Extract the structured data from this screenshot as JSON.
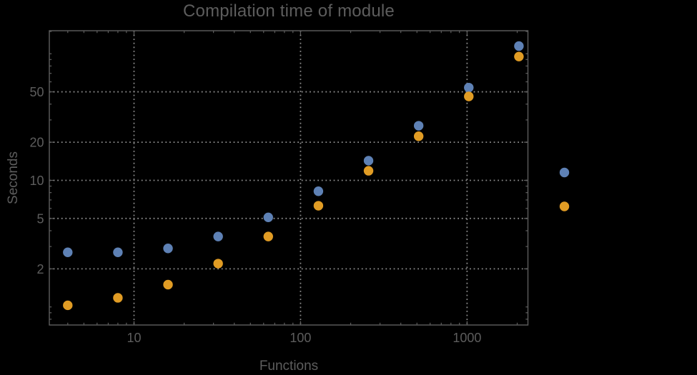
{
  "chart": {
    "title": "Compilation time of module",
    "xlabel": "Functions",
    "ylabel": "Seconds"
  },
  "chart_data": {
    "type": "scatter",
    "title": "Compilation time of module",
    "xlabel": "Functions",
    "ylabel": "Seconds",
    "x_scale": "log",
    "y_scale": "log",
    "grid": "dotted lines at major ticks",
    "legend_position": "right-outside, markers only (no visible labels)",
    "xlim": [
      3.1,
      2320
    ],
    "ylim": [
      0.72,
      152
    ],
    "x_ticks": [
      10,
      100,
      1000
    ],
    "x_tick_labels": [
      "10",
      "100",
      "1000"
    ],
    "x_minor_ticks": [
      4,
      5,
      6,
      7,
      8,
      9,
      20,
      30,
      40,
      50,
      60,
      70,
      80,
      90,
      200,
      300,
      400,
      500,
      600,
      700,
      800,
      900,
      2000
    ],
    "y_ticks": [
      2,
      5,
      10,
      20,
      50
    ],
    "y_tick_labels": [
      "2",
      "5",
      "10",
      "20",
      "50"
    ],
    "y_minor_ticks": [
      0.8,
      0.9,
      1,
      3,
      4,
      6,
      7,
      8,
      9,
      30,
      40,
      60,
      70,
      80,
      90,
      100,
      150
    ],
    "x": [
      4,
      8,
      16,
      32,
      64,
      128,
      256,
      512,
      1024,
      2048
    ],
    "series": [
      {
        "name": "series-1",
        "label": "",
        "color": "#5e81b5",
        "values": [
          2.7,
          2.7,
          2.9,
          3.6,
          5.1,
          8.2,
          14.3,
          27,
          54,
          115
        ]
      },
      {
        "name": "series-2",
        "label": "",
        "color": "#e19c24",
        "values": [
          1.03,
          1.18,
          1.5,
          2.2,
          3.6,
          6.3,
          11.9,
          22.3,
          46,
          95
        ]
      }
    ],
    "colors": {
      "background": "#000000",
      "frame": "#5e5e5e",
      "gridline": "#8a8a8a",
      "text": "#5d5d5d",
      "series_1": "#5e81b5",
      "series_2": "#e19c24"
    }
  }
}
